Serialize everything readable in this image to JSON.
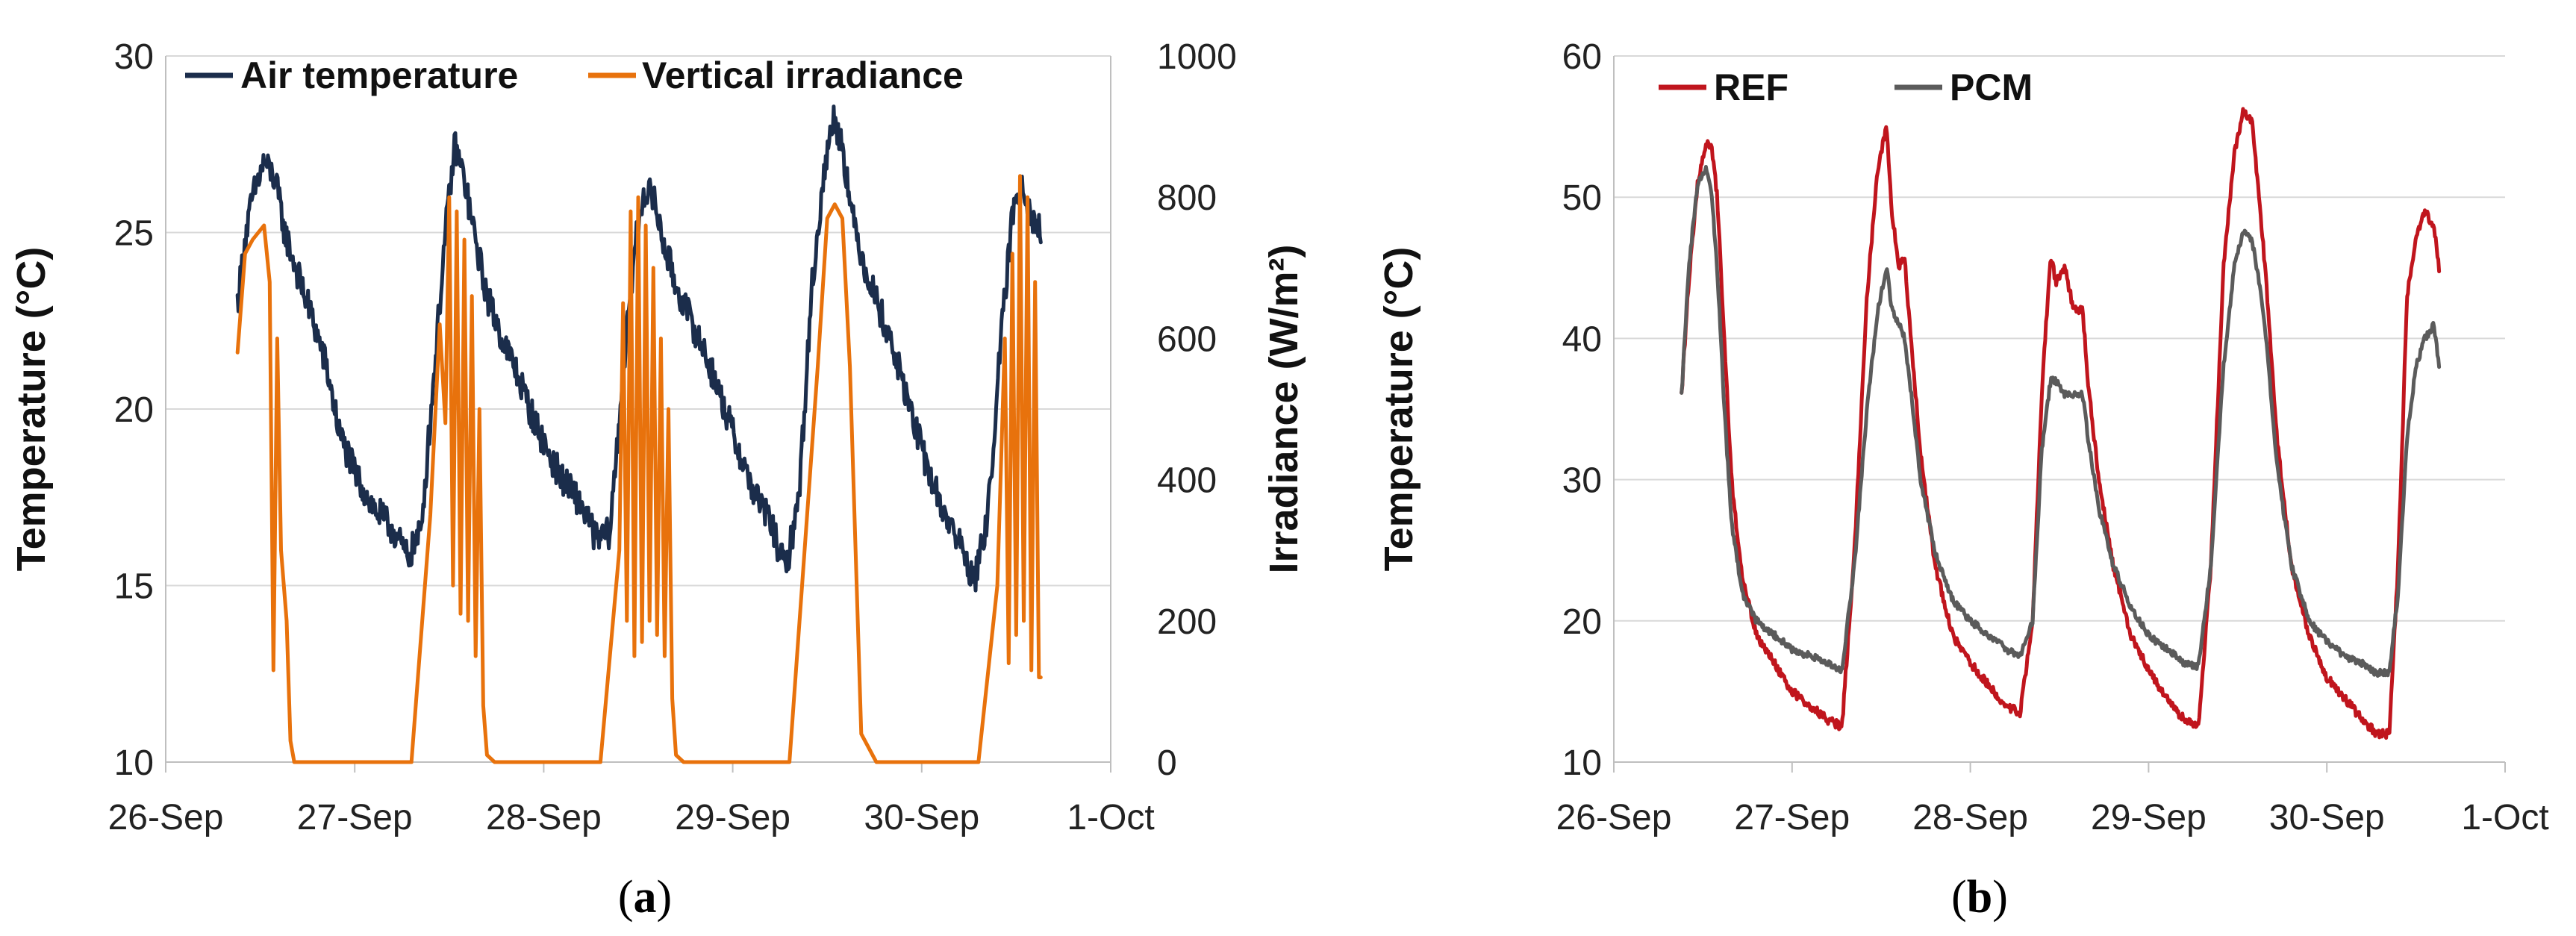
{
  "captions": {
    "a": {
      "open": "(",
      "letter": "a",
      "close": ")"
    },
    "b": {
      "open": "(",
      "letter": "b",
      "close": ")"
    }
  },
  "colors": {
    "air": "#1b2d4b",
    "irr": "#e8720c",
    "ref": "#c0151d",
    "pcm": "#5b5b5b",
    "grid": "#d9d9d9",
    "axis": "#bfbfbf"
  },
  "chart_data": [
    {
      "id": "a",
      "type": "line",
      "title": "",
      "xlabel": "",
      "ylabel": "Temperature (°C)",
      "y2label": "Irradiance (W/m²)",
      "categories": [
        "26-Sep",
        "27-Sep",
        "28-Sep",
        "29-Sep",
        "30-Sep",
        "1-Oct"
      ],
      "xlim": [
        0,
        5
      ],
      "ylim": [
        10,
        30
      ],
      "yticks": [
        10,
        15,
        20,
        25,
        30
      ],
      "y2lim": [
        0,
        1000
      ],
      "y2ticks": [
        0,
        200,
        400,
        600,
        800,
        1000
      ],
      "grid": true,
      "legend": "top-left",
      "series": [
        {
          "name": "Air temperature",
          "axis": "left",
          "color_key": "air",
          "noise": 0.45,
          "x": [
            0.38,
            0.42,
            0.46,
            0.52,
            0.58,
            0.63,
            0.7,
            0.78,
            0.85,
            0.92,
            1.0,
            1.1,
            1.2,
            1.28,
            1.35,
            1.42,
            1.48,
            1.53,
            1.58,
            1.63,
            1.7,
            1.78,
            1.86,
            1.94,
            2.02,
            2.1,
            2.2,
            2.28,
            2.35,
            2.42,
            2.48,
            2.53,
            2.58,
            2.63,
            2.7,
            2.78,
            2.86,
            2.94,
            3.02,
            3.1,
            3.2,
            3.28,
            3.35,
            3.42,
            3.48,
            3.53,
            3.58,
            3.63,
            3.7,
            3.78,
            3.86,
            3.94,
            4.02,
            4.1,
            4.2,
            4.28,
            4.35,
            4.42,
            4.48,
            4.53,
            4.58,
            4.63
          ],
          "y": [
            23.0,
            24.8,
            26.0,
            27.0,
            26.5,
            25.0,
            23.8,
            22.5,
            21.2,
            19.3,
            18.2,
            17.2,
            16.6,
            15.8,
            16.5,
            21.0,
            25.0,
            27.5,
            26.5,
            25.0,
            23.2,
            22.0,
            21.0,
            19.8,
            18.8,
            18.0,
            17.3,
            16.3,
            16.5,
            21.0,
            24.5,
            26.2,
            26.0,
            24.8,
            23.5,
            22.5,
            21.5,
            20.3,
            19.0,
            17.8,
            16.8,
            15.4,
            17.5,
            23.5,
            26.5,
            28.3,
            27.5,
            25.5,
            24.0,
            22.8,
            21.5,
            20.0,
            18.5,
            17.3,
            16.2,
            15.1,
            17.0,
            22.0,
            25.5,
            26.5,
            25.5,
            25.0
          ]
        },
        {
          "name": "Vertical irradiance",
          "axis": "right",
          "color_key": "irr",
          "noise": 0,
          "x": [
            0.38,
            0.42,
            0.46,
            0.52,
            0.55,
            0.57,
            0.59,
            0.61,
            0.64,
            0.66,
            0.68,
            0.72,
            1.1,
            1.3,
            1.4,
            1.45,
            1.48,
            1.5,
            1.52,
            1.54,
            1.56,
            1.58,
            1.6,
            1.62,
            1.64,
            1.66,
            1.68,
            1.7,
            1.74,
            2.1,
            2.3,
            2.4,
            2.42,
            2.44,
            2.46,
            2.48,
            2.5,
            2.52,
            2.54,
            2.56,
            2.58,
            2.6,
            2.62,
            2.64,
            2.66,
            2.68,
            2.7,
            2.74,
            3.1,
            3.3,
            3.45,
            3.5,
            3.54,
            3.58,
            3.62,
            3.68,
            3.76,
            4.1,
            4.3,
            4.4,
            4.44,
            4.46,
            4.48,
            4.5,
            4.52,
            4.54,
            4.56,
            4.58,
            4.6,
            4.62,
            4.63
          ],
          "y": [
            580,
            720,
            740,
            760,
            680,
            130,
            600,
            300,
            200,
            30,
            0,
            0,
            0,
            0,
            350,
            620,
            480,
            800,
            250,
            780,
            210,
            740,
            200,
            660,
            150,
            500,
            80,
            10,
            0,
            0,
            0,
            300,
            650,
            200,
            780,
            150,
            800,
            170,
            760,
            200,
            700,
            180,
            600,
            150,
            500,
            90,
            10,
            0,
            0,
            0,
            560,
            770,
            790,
            770,
            560,
            40,
            0,
            0,
            0,
            250,
            600,
            140,
            720,
            180,
            830,
            200,
            800,
            130,
            680,
            120,
            120
          ]
        }
      ]
    },
    {
      "id": "b",
      "type": "line",
      "title": "",
      "xlabel": "",
      "ylabel": "Temperature (°C)",
      "categories": [
        "26-Sep",
        "27-Sep",
        "28-Sep",
        "29-Sep",
        "30-Sep",
        "1-Oct"
      ],
      "xlim": [
        0,
        5
      ],
      "ylim": [
        10,
        60
      ],
      "yticks": [
        10,
        20,
        30,
        40,
        50,
        60
      ],
      "grid": true,
      "legend": "top-left",
      "series": [
        {
          "name": "REF",
          "color_key": "ref",
          "noise": 0.3,
          "x": [
            0.38,
            0.42,
            0.47,
            0.52,
            0.55,
            0.58,
            0.62,
            0.66,
            0.72,
            0.8,
            0.9,
            1.0,
            1.1,
            1.2,
            1.28,
            1.35,
            1.42,
            1.48,
            1.53,
            1.56,
            1.6,
            1.63,
            1.66,
            1.72,
            1.8,
            1.9,
            2.0,
            2.1,
            2.2,
            2.28,
            2.35,
            2.4,
            2.45,
            2.48,
            2.53,
            2.58,
            2.63,
            2.66,
            2.72,
            2.8,
            2.9,
            3.0,
            3.1,
            3.2,
            3.28,
            3.35,
            3.42,
            3.48,
            3.53,
            3.58,
            3.62,
            3.66,
            3.72,
            3.8,
            3.9,
            4.0,
            4.1,
            4.2,
            4.28,
            4.35,
            4.4,
            4.45,
            4.5,
            4.55,
            4.6,
            4.63
          ],
          "y": [
            36,
            44,
            51,
            54,
            53.5,
            50,
            40,
            30,
            23,
            19,
            17,
            15,
            14,
            13,
            12.5,
            25,
            43,
            52,
            55,
            49,
            45,
            46,
            41,
            32,
            24,
            19,
            17,
            15.5,
            14,
            13.5,
            20,
            36,
            46,
            44,
            45,
            42,
            42,
            37,
            30,
            24,
            19,
            16.5,
            14.5,
            13,
            12.5,
            24,
            45,
            53,
            56,
            55.5,
            50,
            44,
            33,
            24,
            19,
            16,
            14.5,
            13,
            12,
            12,
            24,
            43,
            47,
            49,
            48,
            45
          ]
        },
        {
          "name": "PCM",
          "color_key": "pcm",
          "noise": 0.25,
          "x": [
            0.38,
            0.42,
            0.47,
            0.52,
            0.55,
            0.58,
            0.62,
            0.66,
            0.72,
            0.8,
            0.9,
            1.0,
            1.1,
            1.2,
            1.28,
            1.35,
            1.42,
            1.48,
            1.53,
            1.56,
            1.6,
            1.63,
            1.66,
            1.72,
            1.8,
            1.9,
            2.0,
            2.1,
            2.2,
            2.28,
            2.35,
            2.4,
            2.45,
            2.48,
            2.53,
            2.58,
            2.63,
            2.66,
            2.72,
            2.8,
            2.9,
            3.0,
            3.1,
            3.2,
            3.28,
            3.35,
            3.42,
            3.48,
            3.53,
            3.58,
            3.62,
            3.66,
            3.72,
            3.8,
            3.9,
            4.0,
            4.1,
            4.2,
            4.28,
            4.35,
            4.4,
            4.45,
            4.5,
            4.55,
            4.6,
            4.63
          ],
          "y": [
            36,
            45,
            51,
            52,
            50,
            45,
            35,
            27,
            22,
            20,
            19,
            18,
            17.5,
            17,
            16.5,
            24,
            35,
            42,
            45,
            42,
            41,
            40,
            37,
            30,
            25,
            21.5,
            20,
            19,
            18,
            17.5,
            20,
            32,
            37,
            37,
            36,
            36,
            36,
            33,
            28,
            24,
            21,
            19,
            18,
            17,
            16.8,
            24,
            38,
            45,
            47.5,
            47,
            44,
            40,
            31,
            24,
            20,
            18.5,
            17.5,
            17,
            16.3,
            16.3,
            22,
            33,
            38,
            40,
            41,
            38
          ]
        }
      ]
    }
  ]
}
